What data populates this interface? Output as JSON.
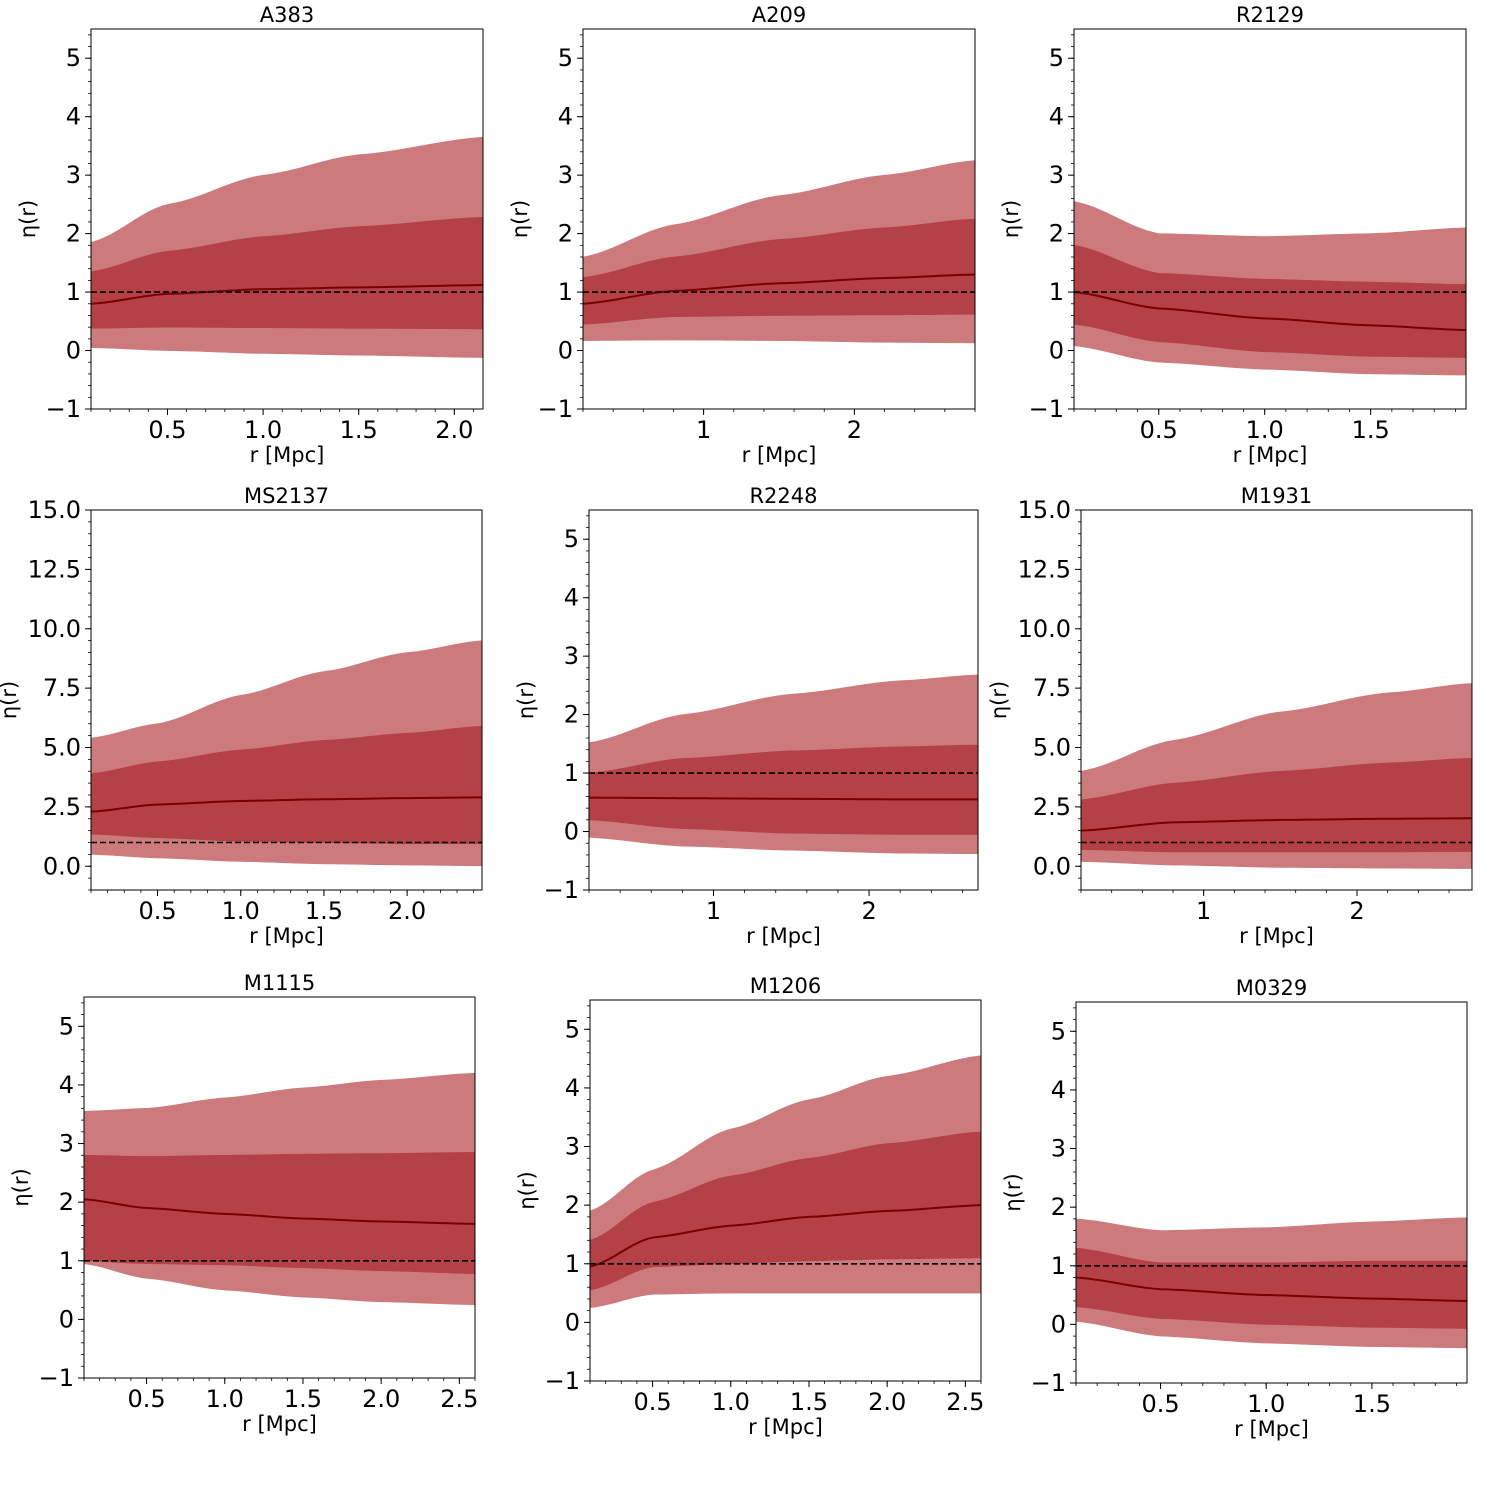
{
  "colors": {
    "outer_band": "#cd7a7d",
    "inner_band": "#b44146",
    "median_line": "#7a0000",
    "reference_line": "#000000"
  },
  "chart_data": [
    {
      "type": "area",
      "title": "A383",
      "xlabel": "r [Mpc]",
      "ylabel": "η(r)",
      "xlim": [
        0.1,
        2.15
      ],
      "ylim": [
        -1,
        5.5
      ],
      "xticks": [
        0.5,
        1.0,
        1.5,
        2.0
      ],
      "xtick_labels": [
        "0.5",
        "1.0",
        "1.5",
        "2.0"
      ],
      "yticks": [
        -1,
        0,
        1,
        2,
        3,
        4,
        5
      ],
      "ytick_labels": [
        "−1",
        "0",
        "1",
        "2",
        "3",
        "4",
        "5"
      ],
      "reference": 1,
      "x": [
        0.1,
        0.5,
        1.0,
        1.5,
        2.15
      ],
      "median": [
        0.8,
        0.97,
        1.05,
        1.08,
        1.12
      ],
      "inner_upper": [
        1.35,
        1.7,
        1.95,
        2.12,
        2.28
      ],
      "inner_lower": [
        0.38,
        0.4,
        0.39,
        0.38,
        0.37
      ],
      "outer_upper": [
        1.85,
        2.5,
        3.0,
        3.35,
        3.65
      ],
      "outer_lower": [
        0.05,
        0.0,
        -0.05,
        -0.08,
        -0.12
      ]
    },
    {
      "type": "area",
      "title": "A209",
      "xlabel": "r [Mpc]",
      "ylabel": "η(r)",
      "xlim": [
        0.2,
        2.8
      ],
      "ylim": [
        -1,
        5.5
      ],
      "xticks": [
        1,
        2
      ],
      "xtick_labels": [
        "1",
        "2"
      ],
      "yticks": [
        -1,
        0,
        1,
        2,
        3,
        4,
        5
      ],
      "ytick_labels": [
        "−1",
        "0",
        "1",
        "2",
        "3",
        "4",
        "5"
      ],
      "reference": 1,
      "x": [
        0.2,
        0.8,
        1.5,
        2.2,
        2.8
      ],
      "median": [
        0.8,
        1.02,
        1.15,
        1.24,
        1.3
      ],
      "inner_upper": [
        1.25,
        1.6,
        1.9,
        2.1,
        2.25
      ],
      "inner_lower": [
        0.45,
        0.58,
        0.6,
        0.61,
        0.62
      ],
      "outer_upper": [
        1.6,
        2.15,
        2.65,
        3.0,
        3.25
      ],
      "outer_lower": [
        0.17,
        0.18,
        0.17,
        0.14,
        0.13
      ]
    },
    {
      "type": "area",
      "title": "R2129",
      "xlabel": "r [Mpc]",
      "ylabel": "η(r)",
      "xlim": [
        0.1,
        1.95
      ],
      "ylim": [
        -1,
        5.5
      ],
      "xticks": [
        0.5,
        1.0,
        1.5
      ],
      "xtick_labels": [
        "0.5",
        "1.0",
        "1.5"
      ],
      "yticks": [
        -1,
        0,
        1,
        2,
        3,
        4,
        5
      ],
      "ytick_labels": [
        "−1",
        "0",
        "1",
        "2",
        "3",
        "4",
        "5"
      ],
      "reference": 1,
      "x": [
        0.1,
        0.5,
        1.0,
        1.5,
        1.95
      ],
      "median": [
        1.0,
        0.72,
        0.55,
        0.43,
        0.35
      ],
      "inner_upper": [
        1.8,
        1.32,
        1.22,
        1.17,
        1.13
      ],
      "inner_lower": [
        0.45,
        0.15,
        -0.02,
        -0.1,
        -0.12
      ],
      "outer_upper": [
        2.55,
        2.0,
        1.95,
        2.0,
        2.1
      ],
      "outer_lower": [
        0.08,
        -0.2,
        -0.32,
        -0.4,
        -0.42
      ]
    },
    {
      "type": "area",
      "title": "MS2137",
      "xlabel": "r [Mpc]",
      "ylabel": "η(r)",
      "xlim": [
        0.1,
        2.45
      ],
      "ylim": [
        -1,
        15
      ],
      "xticks": [
        0.5,
        1.0,
        1.5,
        2.0
      ],
      "xtick_labels": [
        "0.5",
        "1.0",
        "1.5",
        "2.0"
      ],
      "yticks": [
        0,
        2.5,
        5.0,
        7.5,
        10.0,
        12.5,
        15.0
      ],
      "ytick_labels": [
        "0.0",
        "2.5",
        "5.0",
        "7.5",
        "10.0",
        "12.5",
        "15.0"
      ],
      "reference": 1,
      "x": [
        0.1,
        0.5,
        1.0,
        1.5,
        2.0,
        2.45
      ],
      "median": [
        2.3,
        2.6,
        2.75,
        2.82,
        2.87,
        2.9
      ],
      "inner_upper": [
        3.9,
        4.4,
        4.9,
        5.3,
        5.6,
        5.9
      ],
      "inner_lower": [
        1.35,
        1.2,
        1.05,
        1.0,
        0.95,
        0.95
      ],
      "outer_upper": [
        5.4,
        6.0,
        7.2,
        8.2,
        9.0,
        9.5
      ],
      "outer_lower": [
        0.5,
        0.35,
        0.2,
        0.1,
        0.05,
        0.02
      ]
    },
    {
      "type": "area",
      "title": "R2248",
      "xlabel": "r [Mpc]",
      "ylabel": "η(r)",
      "xlim": [
        0.2,
        2.7
      ],
      "ylim": [
        -1,
        5.5
      ],
      "xticks": [
        1,
        2
      ],
      "xtick_labels": [
        "1",
        "2"
      ],
      "yticks": [
        -1,
        0,
        1,
        2,
        3,
        4,
        5
      ],
      "ytick_labels": [
        "−1",
        "0",
        "1",
        "2",
        "3",
        "4",
        "5"
      ],
      "reference": 1,
      "x": [
        0.2,
        0.8,
        1.5,
        2.2,
        2.7
      ],
      "median": [
        0.58,
        0.57,
        0.56,
        0.55,
        0.55
      ],
      "inner_upper": [
        1.0,
        1.25,
        1.38,
        1.45,
        1.48
      ],
      "inner_lower": [
        0.2,
        0.05,
        -0.03,
        -0.05,
        -0.05
      ],
      "outer_upper": [
        1.52,
        2.0,
        2.35,
        2.58,
        2.68
      ],
      "outer_lower": [
        -0.1,
        -0.25,
        -0.32,
        -0.37,
        -0.38
      ]
    },
    {
      "type": "area",
      "title": "M1931",
      "xlabel": "r [Mpc]",
      "ylabel": "η(r)",
      "xlim": [
        0.2,
        2.75
      ],
      "ylim": [
        -1,
        15
      ],
      "xticks": [
        1,
        2
      ],
      "xtick_labels": [
        "1",
        "2"
      ],
      "yticks": [
        0,
        2.5,
        5.0,
        7.5,
        10.0,
        12.5,
        15.0
      ],
      "ytick_labels": [
        "0.0",
        "2.5",
        "5.0",
        "7.5",
        "10.0",
        "12.5",
        "15.0"
      ],
      "reference": 1,
      "x": [
        0.2,
        0.8,
        1.5,
        2.2,
        2.75
      ],
      "median": [
        1.5,
        1.85,
        1.95,
        2.0,
        2.02
      ],
      "inner_upper": [
        2.8,
        3.5,
        4.0,
        4.35,
        4.55
      ],
      "inner_lower": [
        0.7,
        0.6,
        0.6,
        0.6,
        0.62
      ],
      "outer_upper": [
        4.0,
        5.3,
        6.5,
        7.3,
        7.7
      ],
      "outer_lower": [
        0.2,
        0.05,
        -0.05,
        -0.08,
        -0.1
      ]
    },
    {
      "type": "area",
      "title": "M1115",
      "xlabel": "r [Mpc]",
      "ylabel": "η(r)",
      "xlim": [
        0.1,
        2.6
      ],
      "ylim": [
        -1,
        5.5
      ],
      "xticks": [
        0.5,
        1.0,
        1.5,
        2.0,
        2.5
      ],
      "xtick_labels": [
        "0.5",
        "1.0",
        "1.5",
        "2.0",
        "2.5"
      ],
      "yticks": [
        -1,
        0,
        1,
        2,
        3,
        4,
        5
      ],
      "ytick_labels": [
        "−1",
        "0",
        "1",
        "2",
        "3",
        "4",
        "5"
      ],
      "reference": 1,
      "x": [
        0.1,
        0.5,
        1.0,
        1.5,
        2.0,
        2.6
      ],
      "median": [
        2.05,
        1.9,
        1.8,
        1.72,
        1.67,
        1.63
      ],
      "inner_upper": [
        2.8,
        2.78,
        2.8,
        2.82,
        2.83,
        2.85
      ],
      "inner_lower": [
        1.0,
        0.95,
        0.93,
        0.88,
        0.83,
        0.78
      ],
      "outer_upper": [
        3.55,
        3.6,
        3.78,
        3.95,
        4.08,
        4.2
      ],
      "outer_lower": [
        0.95,
        0.7,
        0.5,
        0.38,
        0.3,
        0.25
      ]
    },
    {
      "type": "area",
      "title": "M1206",
      "xlabel": "r [Mpc]",
      "ylabel": "η(r)",
      "xlim": [
        0.1,
        2.6
      ],
      "ylim": [
        -1,
        5.5
      ],
      "xticks": [
        0.5,
        1.0,
        1.5,
        2.0,
        2.5
      ],
      "xtick_labels": [
        "0.5",
        "1.0",
        "1.5",
        "2.0",
        "2.5"
      ],
      "yticks": [
        -1,
        0,
        1,
        2,
        3,
        4,
        5
      ],
      "ytick_labels": [
        "−1",
        "0",
        "1",
        "2",
        "3",
        "4",
        "5"
      ],
      "reference": 1,
      "x": [
        0.1,
        0.5,
        1.0,
        1.5,
        2.0,
        2.6
      ],
      "median": [
        0.95,
        1.45,
        1.65,
        1.8,
        1.9,
        2.0
      ],
      "inner_upper": [
        1.4,
        2.05,
        2.5,
        2.8,
        3.05,
        3.25
      ],
      "inner_lower": [
        0.55,
        0.95,
        1.0,
        1.05,
        1.08,
        1.1
      ],
      "outer_upper": [
        1.9,
        2.6,
        3.3,
        3.8,
        4.2,
        4.55
      ],
      "outer_lower": [
        0.25,
        0.48,
        0.5,
        0.5,
        0.5,
        0.5
      ]
    },
    {
      "type": "area",
      "title": "M0329",
      "xlabel": "r [Mpc]",
      "ylabel": "η(r)",
      "xlim": [
        0.1,
        1.95
      ],
      "ylim": [
        -1,
        5.5
      ],
      "xticks": [
        0.5,
        1.0,
        1.5
      ],
      "xtick_labels": [
        "0.5",
        "1.0",
        "1.5"
      ],
      "yticks": [
        -1,
        0,
        1,
        2,
        3,
        4,
        5
      ],
      "ytick_labels": [
        "−1",
        "0",
        "1",
        "2",
        "3",
        "4",
        "5"
      ],
      "reference": 1,
      "x": [
        0.1,
        0.5,
        1.0,
        1.5,
        1.95
      ],
      "median": [
        0.8,
        0.6,
        0.5,
        0.44,
        0.4
      ],
      "inner_upper": [
        1.3,
        1.05,
        1.05,
        1.08,
        1.08
      ],
      "inner_lower": [
        0.3,
        0.1,
        0.0,
        -0.05,
        -0.07
      ],
      "outer_upper": [
        1.8,
        1.6,
        1.65,
        1.75,
        1.82
      ],
      "outer_lower": [
        0.05,
        -0.2,
        -0.32,
        -0.38,
        -0.4
      ]
    }
  ]
}
